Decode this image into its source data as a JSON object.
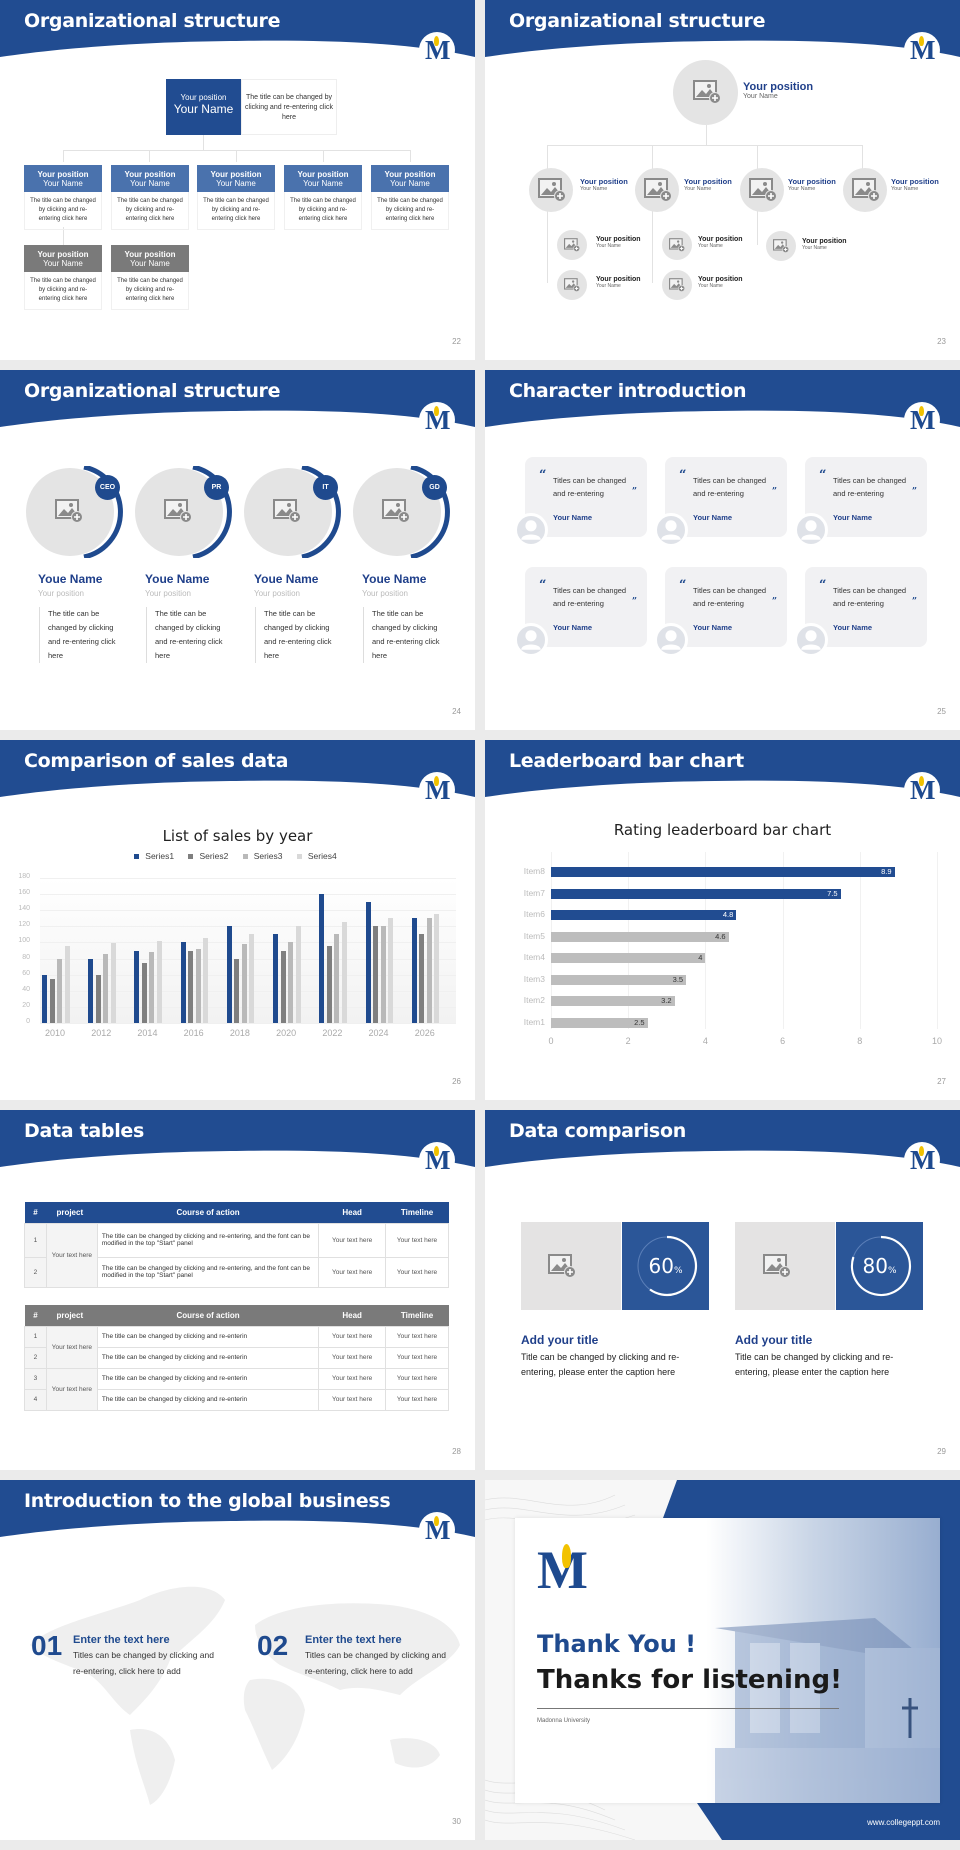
{
  "colors": {
    "primary": "#214c91",
    "child_header": "#4a72ad",
    "gray_header": "#7a7a7a",
    "light_gray": "#e4e4e4"
  },
  "slides": {
    "s22": {
      "title": "Organizational structure",
      "page": "22",
      "top": {
        "position": "Your position",
        "name": "Your Name",
        "desc": "The title can be changed by clicking and re-entering click here"
      },
      "cards": [
        {
          "position": "Your position",
          "name": "Your Name",
          "desc": "The title can be changed by clicking and re-entering click here"
        },
        {
          "position": "Your position",
          "name": "Your Name",
          "desc": "The title can be changed by clicking and re-entering click here"
        },
        {
          "position": "Your position",
          "name": "Your Name",
          "desc": "The title can be changed by clicking and re-entering click here"
        },
        {
          "position": "Your position",
          "name": "Your Name",
          "desc": "The title can be changed by clicking and re-entering click here"
        },
        {
          "position": "Your position",
          "name": "Your Name",
          "desc": "The title can be changed by clicking and re-entering click here"
        },
        {
          "position": "Your position",
          "name": "Your Name",
          "desc": "The title can be changed by clicking and re-entering click here"
        },
        {
          "position": "Your position",
          "name": "Your Name",
          "desc": "The title can be changed by clicking and re-entering click here"
        }
      ]
    },
    "s23": {
      "title": "Organizational structure",
      "page": "23",
      "top": {
        "position": "Your position",
        "name": "Your Name"
      },
      "level1": [
        {
          "position": "Your position",
          "name": "Your Name"
        },
        {
          "position": "Your position",
          "name": "Your Name"
        },
        {
          "position": "Your position",
          "name": "Your Name"
        },
        {
          "position": "Your position",
          "name": "Your Name"
        }
      ],
      "level2": [
        {
          "position": "Your position",
          "name": "Your Name"
        },
        {
          "position": "Your position",
          "name": "Your Name"
        },
        {
          "position": "Your position",
          "name": "Your Name"
        },
        {
          "position": "Your position",
          "name": "Your Name"
        },
        {
          "position": "Your position",
          "name": "Your Name"
        }
      ]
    },
    "s24": {
      "title": "Organizational structure",
      "page": "24",
      "people": [
        {
          "badge": "CEO",
          "name": "Youe Name",
          "position": "Your position",
          "desc": "The title can be changed by clicking and re-entering click here"
        },
        {
          "badge": "PR",
          "name": "Youe Name",
          "position": "Your position",
          "desc": "The title can be changed by clicking and re-entering click here"
        },
        {
          "badge": "IT",
          "name": "Youe Name",
          "position": "Your position",
          "desc": "The title can be changed by clicking and re-entering click here"
        },
        {
          "badge": "GD",
          "name": "Youe Name",
          "position": "Your position",
          "desc": "The title can be changed by clicking and re-entering click here"
        }
      ]
    },
    "s25": {
      "title": "Character introduction",
      "page": "25",
      "cards": [
        {
          "text": "Titles can be changed and re-entering",
          "name": "Your Name"
        },
        {
          "text": "Titles can be changed and re-entering",
          "name": "Your Name"
        },
        {
          "text": "Titles can be changed and re-entering",
          "name": "Your Name"
        },
        {
          "text": "Titles can be changed and re-entering",
          "name": "Your Name"
        },
        {
          "text": "Titles can be changed and re-entering",
          "name": "Your Name"
        },
        {
          "text": "Titles can be changed and re-entering",
          "name": "Your Name"
        }
      ],
      "quote_open": "“",
      "quote_close": "”"
    },
    "s26": {
      "title": "Comparison of sales data",
      "page": "26"
    },
    "s27": {
      "title": "Leaderboard bar chart",
      "page": "27"
    },
    "s28": {
      "title": "Data tables",
      "page": "28",
      "headers": [
        "#",
        "project",
        "Course of action",
        "Head",
        "Timeline"
      ],
      "table1": {
        "project": "Your text here",
        "rows": [
          {
            "n": "1",
            "action": "The title can be changed by clicking and re-entering, and the font can be modified in the top \"Start\" panel",
            "head": "Your text here",
            "timeline": "Your text here"
          },
          {
            "n": "2",
            "action": "The title can be changed by clicking and re-entering, and the font can be modified in the top \"Start\" panel",
            "head": "Your text here",
            "timeline": "Your text here"
          }
        ]
      },
      "table2": {
        "projects": [
          "Your text here",
          "Your text here"
        ],
        "rows": [
          {
            "n": "1",
            "action": "The title can be changed by clicking and re-enterin",
            "head": "Your text here",
            "timeline": "Your text here"
          },
          {
            "n": "2",
            "action": "The title can be changed by clicking and re-enterin",
            "head": "Your text here",
            "timeline": "Your text here"
          },
          {
            "n": "3",
            "action": "The title can be changed by clicking and re-enterin",
            "head": "Your text here",
            "timeline": "Your text here"
          },
          {
            "n": "4",
            "action": "The title can be changed by clicking and re-enterin",
            "head": "Your text here",
            "timeline": "Your text here"
          }
        ]
      }
    },
    "s29": {
      "title": "Data comparison",
      "page": "29",
      "items": [
        {
          "value": "60",
          "unit": "%",
          "title": "Add your title",
          "text": "Title can be changed by clicking and re-entering, please enter the caption here"
        },
        {
          "value": "80",
          "unit": "%",
          "title": "Add your title",
          "text": "Title can be changed by clicking and re-entering, please enter the caption here"
        }
      ]
    },
    "s30": {
      "title": "Introduction to the global business",
      "page": "30",
      "items": [
        {
          "num": "01",
          "title": "Enter the text here",
          "text": "Titles can be changed by clicking and re-entering, click here to add"
        },
        {
          "num": "02",
          "title": "Enter the text here",
          "text": "Titles can be changed by clicking and re-entering, click here to add"
        }
      ]
    },
    "s31": {
      "thank_you": "Thank You !",
      "thanks": "Thanks for listening!",
      "university": "Madonna University",
      "website": "www.collegeppt.com"
    }
  },
  "chart_data": [
    {
      "type": "bar",
      "title": "List of sales by year",
      "categories": [
        "2010",
        "2012",
        "2014",
        "2016",
        "2018",
        "2020",
        "2022",
        "2024",
        "2026"
      ],
      "series": [
        {
          "name": "Series1",
          "color": "#1f4a8e",
          "values": [
            60,
            80,
            90,
            100,
            120,
            110,
            160,
            150,
            130
          ]
        },
        {
          "name": "Series2",
          "color": "#7f7f7f",
          "values": [
            55,
            60,
            75,
            90,
            80,
            90,
            96,
            120,
            110
          ]
        },
        {
          "name": "Series3",
          "color": "#b9b9b9",
          "values": [
            80,
            86,
            88,
            92,
            98,
            100,
            110,
            120,
            130
          ]
        },
        {
          "name": "Series4",
          "color": "#d9d9d9",
          "values": [
            95,
            99,
            102,
            105,
            110,
            120,
            126,
            130,
            135
          ]
        }
      ],
      "yticks": [
        "0",
        "20",
        "40",
        "60",
        "80",
        "100",
        "120",
        "140",
        "160",
        "180"
      ],
      "ylim": [
        0,
        180
      ],
      "legend_position": "top",
      "grid": true,
      "xlabel": "",
      "ylabel": ""
    },
    {
      "type": "bar",
      "orientation": "horizontal",
      "title": "Rating leaderboard bar chart",
      "categories": [
        "Item8",
        "Item7",
        "Item6",
        "Item5",
        "Item4",
        "Item3",
        "Item2",
        "Item1"
      ],
      "values": [
        8.9,
        7.5,
        4.8,
        4.6,
        4,
        3.5,
        3.2,
        2.5
      ],
      "labels": [
        "8.9",
        "7.5",
        "4.8",
        "4.6",
        "4",
        "3.5",
        "3.2",
        "2.5"
      ],
      "highlight_top": 3,
      "xticks": [
        "0",
        "2",
        "4",
        "6",
        "8",
        "10"
      ],
      "xlim": [
        0,
        10
      ],
      "grid": true,
      "xlabel": "",
      "ylabel": ""
    }
  ]
}
